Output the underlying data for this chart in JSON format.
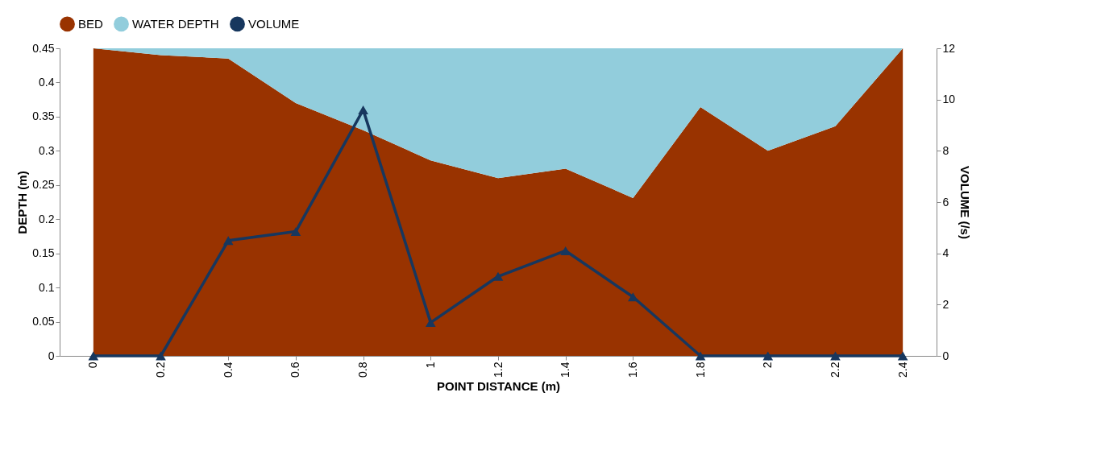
{
  "chart_data": {
    "type": "area",
    "stacked": true,
    "categories": [
      "0",
      "0.2",
      "0.4",
      "0.6",
      "0.8",
      "1",
      "1.2",
      "1.4",
      "1.6",
      "1.8",
      "2",
      "2.2",
      "2.4"
    ],
    "series": [
      {
        "name": "BED",
        "color": "#993300",
        "values": [
          0.45,
          0.44,
          0.435,
          0.37,
          0.33,
          0.286,
          0.26,
          0.274,
          0.231,
          0.364,
          0.3,
          0.336,
          0.45
        ]
      },
      {
        "name": "WATER DEPTH",
        "color": "#92cddc",
        "values": [
          0,
          0.01,
          0.015,
          0.08,
          0.12,
          0.164,
          0.19,
          0.176,
          0.219,
          0.086,
          0.15,
          0.114,
          0
        ]
      },
      {
        "name": "VOLUME",
        "type": "line",
        "axis": "y2",
        "color": "#17375e",
        "marker": "triangle",
        "values": [
          0,
          0,
          4.5,
          4.85,
          9.6,
          1.3,
          3.1,
          4.1,
          2.3,
          0,
          0,
          0,
          0
        ]
      }
    ],
    "xlabel": "POINT DISTANCE (m)",
    "ylabel": "DEPTH  (m)",
    "y2label": "VOLUME (/s)",
    "ylim": [
      0,
      0.45
    ],
    "yticks": [
      0,
      0.05,
      0.1,
      0.15,
      0.2,
      0.25,
      0.3,
      0.35,
      0.4,
      0.45
    ],
    "y2lim": [
      0,
      12
    ],
    "y2ticks": [
      0,
      2,
      4,
      6,
      8,
      10,
      12
    ],
    "legend": "top",
    "grid": false
  }
}
